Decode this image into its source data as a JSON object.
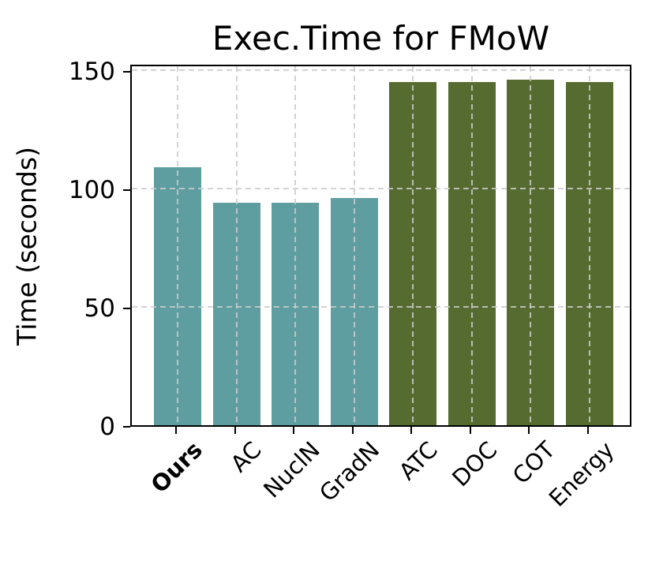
{
  "chart_data": {
    "type": "bar",
    "title": "Exec.Time for FMoW",
    "xlabel": "",
    "ylabel": "Time (seconds)",
    "categories": [
      "Ours",
      "AC",
      "NuclN",
      "GradN",
      "ATC",
      "DOC",
      "COT",
      "Energy"
    ],
    "values": [
      109,
      94,
      94,
      96,
      145,
      145,
      146,
      145
    ],
    "bar_colors": [
      "#5F9EA0",
      "#5F9EA0",
      "#5F9EA0",
      "#5F9EA0",
      "#556B2F",
      "#556B2F",
      "#556B2F",
      "#556B2F"
    ],
    "bold_categories": [
      "Ours"
    ],
    "yticks": [
      0,
      50,
      100,
      150
    ],
    "ytick_labels": [
      "0",
      "50",
      "100",
      "150"
    ],
    "ylim": [
      0,
      153
    ],
    "grid": "dashed, both axes, drawn over bars",
    "legend": "none",
    "x_tick_label_rotation_deg": 45
  },
  "colors": {
    "teal_group": "#5F9EA0",
    "olive_group": "#556B2F",
    "gridline": "#d4d4d4",
    "axis": "#000000",
    "background": "#ffffff"
  }
}
